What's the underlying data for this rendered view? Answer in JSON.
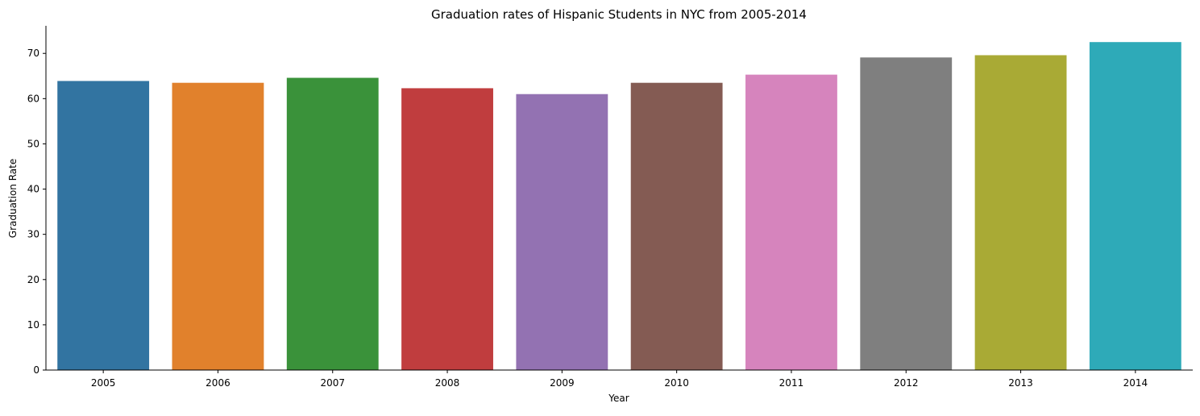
{
  "chart_data": {
    "type": "bar",
    "title": "Graduation rates of Hispanic Students in NYC from 2005-2014",
    "xlabel": "Year",
    "ylabel": "Graduation Rate",
    "categories": [
      "2005",
      "2006",
      "2007",
      "2008",
      "2009",
      "2010",
      "2011",
      "2012",
      "2013",
      "2014"
    ],
    "values": [
      63.9,
      63.5,
      64.6,
      62.3,
      61.0,
      63.5,
      65.3,
      69.1,
      69.6,
      72.5
    ],
    "colors": [
      "#3274a1",
      "#e1812c",
      "#3a923a",
      "#c03d3e",
      "#9372b2",
      "#845b53",
      "#d684bd",
      "#7f7f7f",
      "#a9aa35",
      "#2eaab8"
    ],
    "yticks": [
      0,
      10,
      20,
      30,
      40,
      50,
      60,
      70
    ],
    "ylim": [
      0,
      76.1
    ],
    "grid": false,
    "legend": "none"
  }
}
